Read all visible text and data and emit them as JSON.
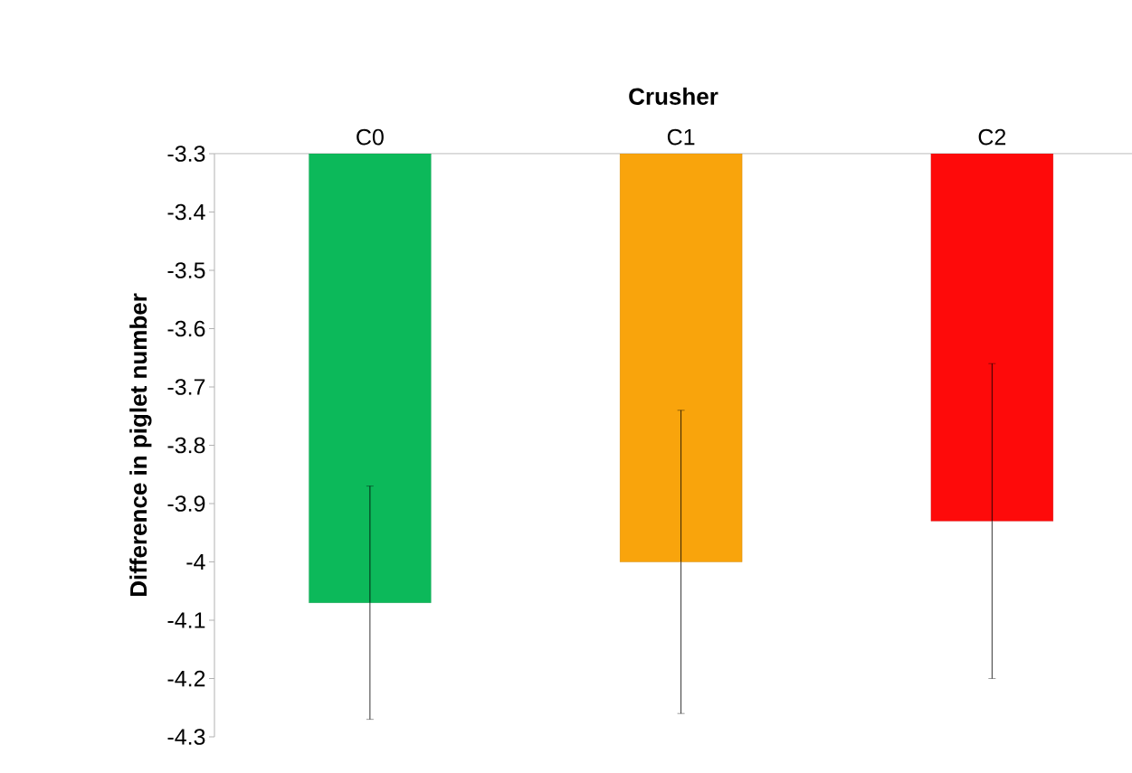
{
  "chart_data": {
    "type": "bar",
    "xlabel": "Crusher",
    "ylabel": "Difference in piglet number",
    "categories": [
      "C0",
      "C1",
      "C2"
    ],
    "values": [
      -4.07,
      -4.0,
      -3.93
    ],
    "colors": [
      "#0cb95a",
      "#f9a40c",
      "#fe0a0a"
    ],
    "errors": [
      0.2,
      0.26,
      0.27
    ],
    "ylim": [
      -4.3,
      -3.3
    ],
    "yticks": [
      -4.3,
      -4.2,
      -4.1,
      -4,
      -3.9,
      -3.8,
      -3.7,
      -3.6,
      -3.5,
      -3.4,
      -3.3
    ],
    "grid": false
  }
}
